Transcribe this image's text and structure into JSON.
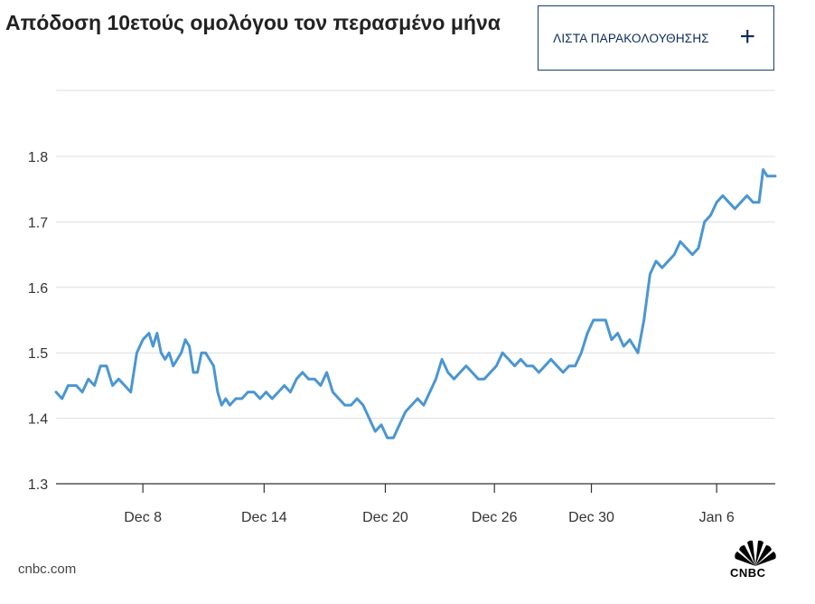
{
  "title": "Απόδοση 10ετούς ομολόγου τον περασμένο μήνα",
  "watchlist_button": {
    "label": "ΛΙΣΤΑ ΠΑΡΑΚΟΛΟΥΘΗΣΗΣ",
    "icon": "plus-icon",
    "color": "#0b2a5a"
  },
  "source": "cnbc.com",
  "logo": {
    "text": "CNBC",
    "icon": "peacock-icon"
  },
  "colors": {
    "line": "#4a96d2",
    "grid": "#dddddd",
    "axis": "#333333"
  },
  "chart_data": {
    "type": "line",
    "title": "Απόδοση 10ετούς ομολόγου τον περασμένο μήνα",
    "xlabel": "",
    "ylabel": "",
    "ylim": [
      1.3,
      1.8
    ],
    "yticks": [
      1.3,
      1.4,
      1.5,
      1.6,
      1.7,
      1.8
    ],
    "xticks": [
      {
        "label": "Dec 8",
        "x": 4.3
      },
      {
        "label": "Dec 14",
        "x": 10.3
      },
      {
        "label": "Dec 20",
        "x": 16.3
      },
      {
        "label": "Dec 26",
        "x": 21.7
      },
      {
        "label": "Dec 30",
        "x": 26.5
      },
      {
        "label": "Jan 6",
        "x": 32.7
      }
    ],
    "grid": true,
    "series": [
      {
        "x": [
          0.0,
          0.3,
          0.6,
          1.0,
          1.3,
          1.6,
          1.9,
          2.2,
          2.5,
          2.8,
          3.1,
          3.4,
          3.7,
          4.0,
          4.3,
          4.6,
          4.8,
          5.0,
          5.2,
          5.4,
          5.6,
          5.8,
          6.0,
          6.2,
          6.4,
          6.6,
          6.8,
          7.0,
          7.2,
          7.4,
          7.6,
          7.8,
          8.0,
          8.2,
          8.4,
          8.6,
          8.9,
          9.2,
          9.5,
          9.8,
          10.1,
          10.4,
          10.7,
          11.0,
          11.3,
          11.6,
          11.9,
          12.2,
          12.5,
          12.8,
          13.1,
          13.4,
          13.7,
          14.0,
          14.3,
          14.6,
          14.9,
          15.2,
          15.5,
          15.8,
          16.1,
          16.4,
          16.7,
          17.0,
          17.3,
          17.6,
          17.9,
          18.2,
          18.5,
          18.8,
          19.1,
          19.4,
          19.7,
          20.0,
          20.3,
          20.6,
          20.9,
          21.2,
          21.5,
          21.8,
          22.1,
          22.4,
          22.7,
          23.0,
          23.3,
          23.6,
          23.9,
          24.2,
          24.5,
          24.8,
          25.1,
          25.4,
          25.7,
          26.0,
          26.3,
          26.6,
          26.9,
          27.2,
          27.5,
          27.8,
          28.1,
          28.4,
          28.6,
          28.8,
          29.1,
          29.4,
          29.7,
          30.0,
          30.3,
          30.6,
          30.9,
          31.2,
          31.5,
          31.8,
          32.1,
          32.4,
          32.7,
          33.0,
          33.3,
          33.6,
          33.9,
          34.2,
          34.5,
          34.8,
          35.0,
          35.2,
          35.4,
          35.6
        ],
        "y": [
          1.44,
          1.43,
          1.45,
          1.45,
          1.44,
          1.46,
          1.45,
          1.48,
          1.48,
          1.45,
          1.46,
          1.45,
          1.44,
          1.5,
          1.52,
          1.53,
          1.51,
          1.53,
          1.5,
          1.49,
          1.5,
          1.48,
          1.49,
          1.5,
          1.52,
          1.51,
          1.47,
          1.47,
          1.5,
          1.5,
          1.49,
          1.48,
          1.44,
          1.42,
          1.43,
          1.42,
          1.43,
          1.43,
          1.44,
          1.44,
          1.43,
          1.44,
          1.43,
          1.44,
          1.45,
          1.44,
          1.46,
          1.47,
          1.46,
          1.46,
          1.45,
          1.47,
          1.44,
          1.43,
          1.42,
          1.42,
          1.43,
          1.42,
          1.4,
          1.38,
          1.39,
          1.37,
          1.37,
          1.39,
          1.41,
          1.42,
          1.43,
          1.42,
          1.44,
          1.46,
          1.49,
          1.47,
          1.46,
          1.47,
          1.48,
          1.47,
          1.46,
          1.46,
          1.47,
          1.48,
          1.5,
          1.49,
          1.48,
          1.49,
          1.48,
          1.48,
          1.47,
          1.48,
          1.49,
          1.48,
          1.47,
          1.48,
          1.48,
          1.5,
          1.53,
          1.55,
          1.55,
          1.55,
          1.52,
          1.53,
          1.51,
          1.52,
          1.51,
          1.5,
          1.55,
          1.62,
          1.64,
          1.63,
          1.64,
          1.65,
          1.67,
          1.66,
          1.65,
          1.66,
          1.7,
          1.71,
          1.73,
          1.74,
          1.73,
          1.72,
          1.73,
          1.74,
          1.73,
          1.73,
          1.78,
          1.77,
          1.77,
          1.77
        ]
      }
    ]
  }
}
